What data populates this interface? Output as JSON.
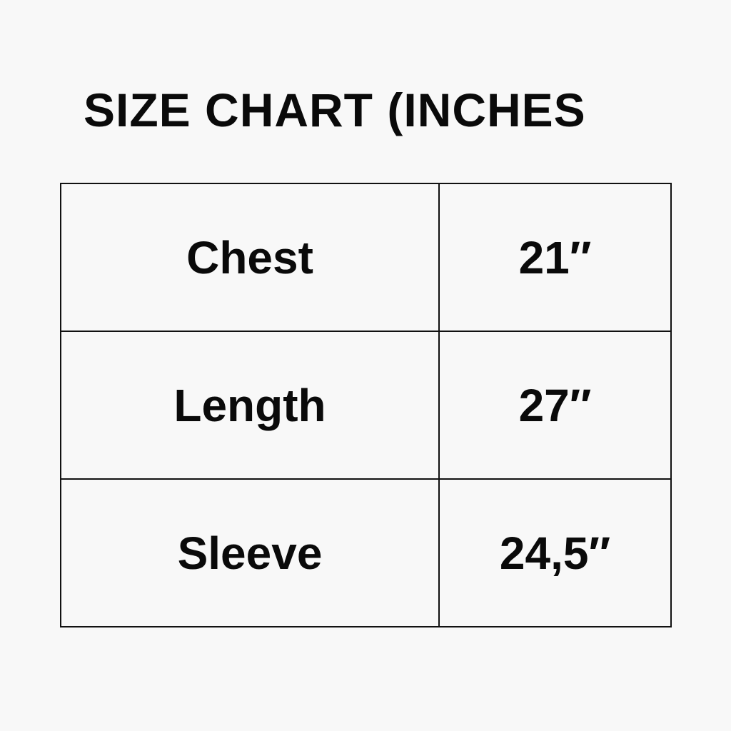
{
  "title": "SIZE CHART (INCHES",
  "rows": [
    {
      "label": "Chest",
      "value": "21″"
    },
    {
      "label": "Length",
      "value": "27″"
    },
    {
      "label": "Sleeve",
      "value": "24,5″"
    }
  ]
}
